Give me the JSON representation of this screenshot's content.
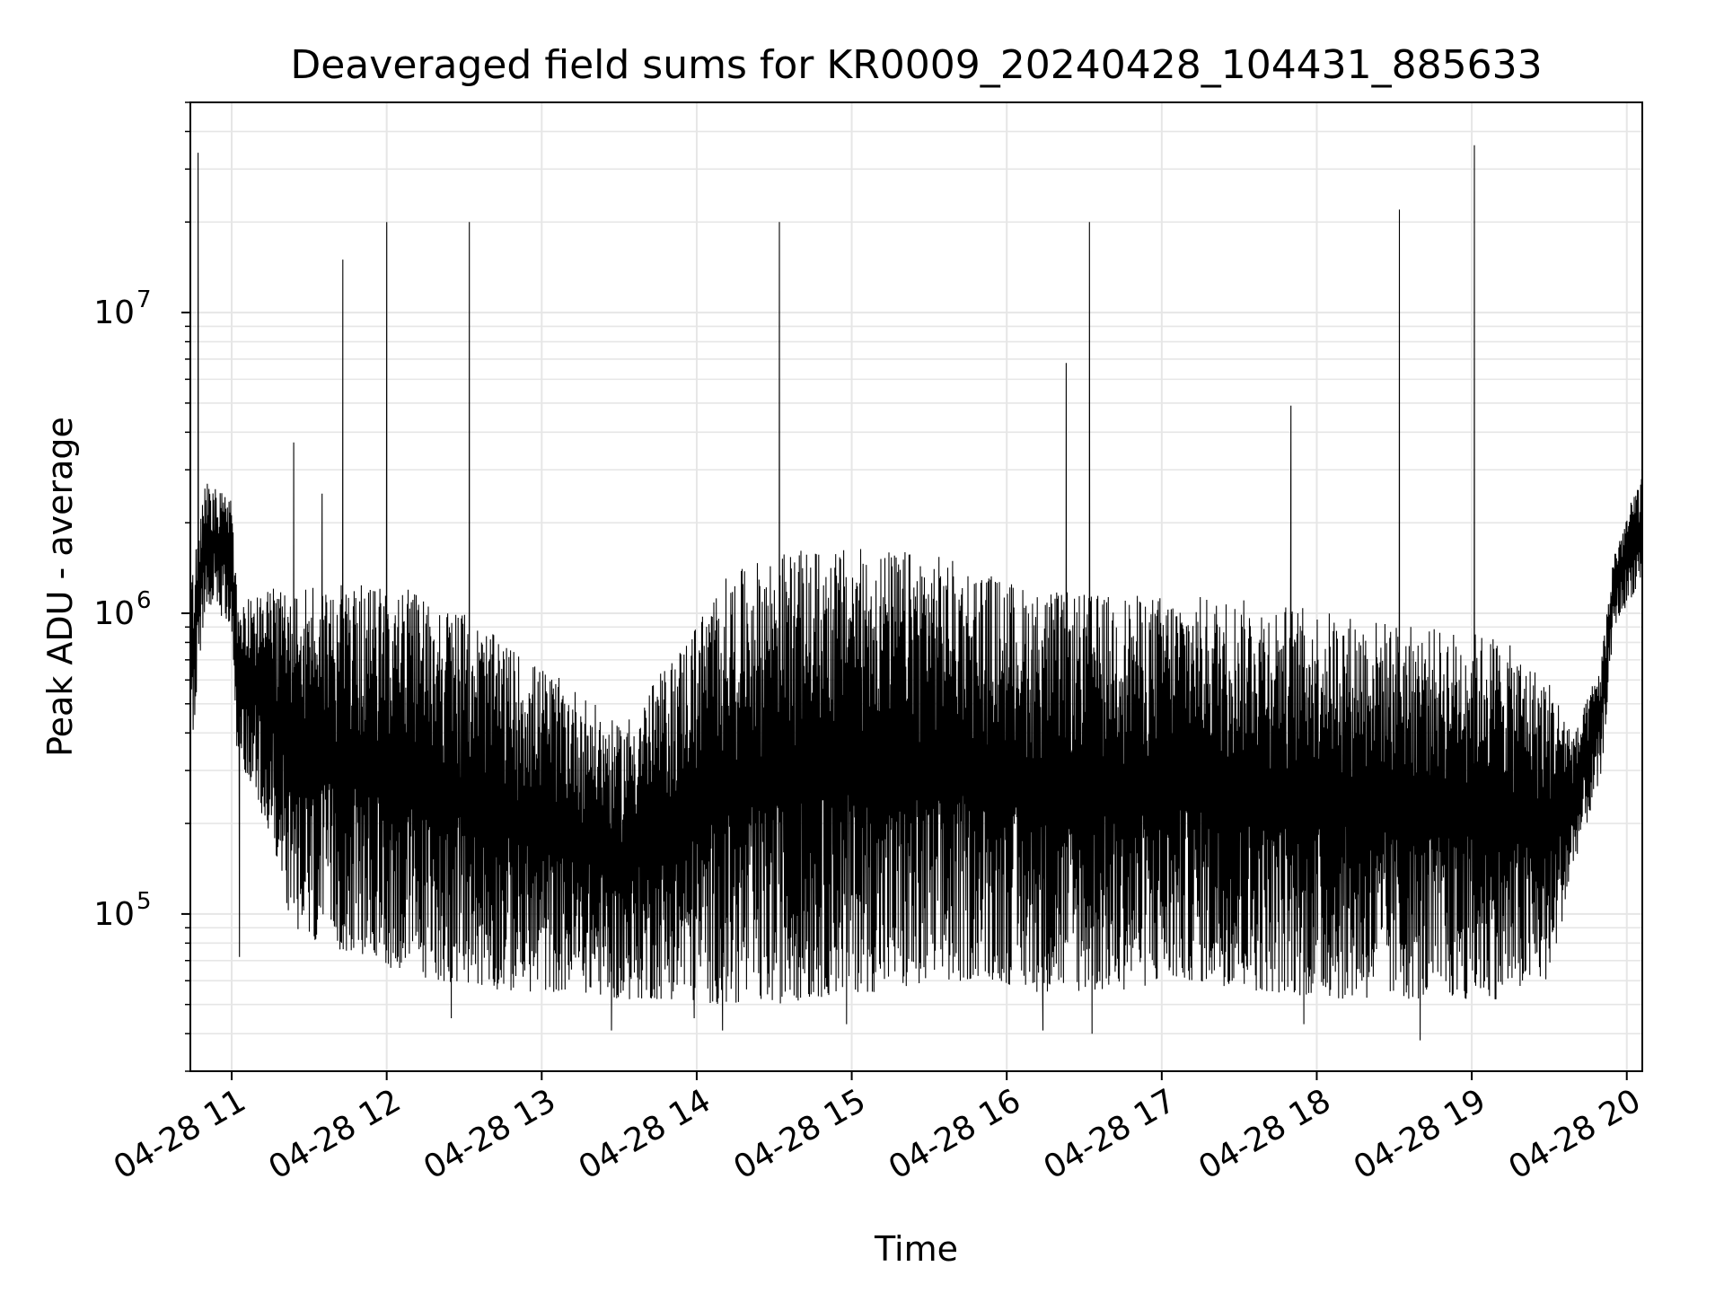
{
  "chart_data": {
    "type": "line",
    "title": "Deaveraged field sums for KR0009_20240428_104431_885633",
    "xlabel": "Time",
    "ylabel": "Peak ADU - average",
    "y_scale": "log",
    "ylim": [
      30000,
      50000000
    ],
    "xlim": [
      "2024-04-28 10:44",
      "2024-04-28 20:06"
    ],
    "grid": true,
    "line_color": "#000000",
    "grid_color": "#e6e6e6",
    "x_ticks": [
      {
        "time": "2024-04-28 11:00",
        "label": "04-28 11"
      },
      {
        "time": "2024-04-28 12:00",
        "label": "04-28 12"
      },
      {
        "time": "2024-04-28 13:00",
        "label": "04-28 13"
      },
      {
        "time": "2024-04-28 14:00",
        "label": "04-28 14"
      },
      {
        "time": "2024-04-28 15:00",
        "label": "04-28 15"
      },
      {
        "time": "2024-04-28 16:00",
        "label": "04-28 16"
      },
      {
        "time": "2024-04-28 17:00",
        "label": "04-28 17"
      },
      {
        "time": "2024-04-28 18:00",
        "label": "04-28 18"
      },
      {
        "time": "2024-04-28 19:00",
        "label": "04-28 19"
      },
      {
        "time": "2024-04-28 20:00",
        "label": "04-28 20"
      }
    ],
    "y_ticks": [
      {
        "value": 100000,
        "base": "10",
        "exp": "5"
      },
      {
        "value": 1000000,
        "base": "10",
        "exp": "6"
      },
      {
        "value": 10000000,
        "base": "10",
        "exp": "7"
      }
    ],
    "envelope": [
      {
        "time": "2024-04-28 10:44",
        "low": 320000,
        "high": 1200000
      },
      {
        "time": "2024-04-28 10:50",
        "low": 1100000,
        "high": 2800000
      },
      {
        "time": "2024-04-28 11:00",
        "low": 900000,
        "high": 2400000
      },
      {
        "time": "2024-04-28 11:02",
        "low": 350000,
        "high": 1200000
      },
      {
        "time": "2024-04-28 11:15",
        "low": 180000,
        "high": 1200000
      },
      {
        "time": "2024-04-28 11:25",
        "low": 80000,
        "high": 1300000
      },
      {
        "time": "2024-04-28 11:45",
        "low": 75000,
        "high": 1250000
      },
      {
        "time": "2024-04-28 12:10",
        "low": 62000,
        "high": 1200000
      },
      {
        "time": "2024-04-28 12:30",
        "low": 58000,
        "high": 1000000
      },
      {
        "time": "2024-04-28 12:50",
        "low": 55000,
        "high": 750000
      },
      {
        "time": "2024-04-28 13:15",
        "low": 55000,
        "high": 550000
      },
      {
        "time": "2024-04-28 13:30",
        "low": 52000,
        "high": 420000
      },
      {
        "time": "2024-04-28 13:50",
        "low": 52000,
        "high": 700000
      },
      {
        "time": "2024-04-28 14:10",
        "low": 50000,
        "high": 1300000
      },
      {
        "time": "2024-04-28 14:30",
        "low": 50000,
        "high": 1600000
      },
      {
        "time": "2024-04-28 15:00",
        "low": 55000,
        "high": 1650000
      },
      {
        "time": "2024-04-28 15:30",
        "low": 55000,
        "high": 1600000
      },
      {
        "time": "2024-04-28 15:50",
        "low": 62000,
        "high": 1400000
      },
      {
        "time": "2024-04-28 16:10",
        "low": 55000,
        "high": 1200000
      },
      {
        "time": "2024-04-28 16:40",
        "low": 55000,
        "high": 1150000
      },
      {
        "time": "2024-04-28 17:10",
        "low": 60000,
        "high": 1150000
      },
      {
        "time": "2024-04-28 17:40",
        "low": 55000,
        "high": 1100000
      },
      {
        "time": "2024-04-28 18:10",
        "low": 52000,
        "high": 1000000
      },
      {
        "time": "2024-04-28 18:40",
        "low": 52000,
        "high": 900000
      },
      {
        "time": "2024-04-28 19:10",
        "low": 52000,
        "high": 850000
      },
      {
        "time": "2024-04-28 19:30",
        "low": 60000,
        "high": 600000
      },
      {
        "time": "2024-04-28 19:40",
        "low": 150000,
        "high": 400000
      },
      {
        "time": "2024-04-28 19:50",
        "low": 280000,
        "high": 700000
      },
      {
        "time": "2024-04-28 19:55",
        "low": 900000,
        "high": 1600000
      },
      {
        "time": "2024-04-28 20:06",
        "low": 1300000,
        "high": 3000000
      }
    ],
    "spikes": [
      {
        "time": "2024-04-28 10:47",
        "value": 34000000
      },
      {
        "time": "2024-04-28 11:24",
        "value": 3700000
      },
      {
        "time": "2024-04-28 11:35",
        "value": 2500000
      },
      {
        "time": "2024-04-28 11:43",
        "value": 15000000
      },
      {
        "time": "2024-04-28 12:00",
        "value": 20000000
      },
      {
        "time": "2024-04-28 12:32",
        "value": 20000000
      },
      {
        "time": "2024-04-28 14:32",
        "value": 20000000
      },
      {
        "time": "2024-04-28 16:23",
        "value": 6800000
      },
      {
        "time": "2024-04-28 16:32",
        "value": 20000000
      },
      {
        "time": "2024-04-28 17:50",
        "value": 4900000
      },
      {
        "time": "2024-04-28 18:32",
        "value": 22000000
      },
      {
        "time": "2024-04-28 19:01",
        "value": 36000000
      }
    ],
    "dips": [
      {
        "time": "2024-04-28 11:03",
        "value": 72000
      },
      {
        "time": "2024-04-28 12:25",
        "value": 45000
      },
      {
        "time": "2024-04-28 13:27",
        "value": 41000
      },
      {
        "time": "2024-04-28 13:59",
        "value": 45000
      },
      {
        "time": "2024-04-28 14:10",
        "value": 41000
      },
      {
        "time": "2024-04-28 14:58",
        "value": 43000
      },
      {
        "time": "2024-04-28 16:14",
        "value": 41000
      },
      {
        "time": "2024-04-28 16:33",
        "value": 40000
      },
      {
        "time": "2024-04-28 17:55",
        "value": 43000
      },
      {
        "time": "2024-04-28 18:40",
        "value": 38000
      }
    ]
  }
}
